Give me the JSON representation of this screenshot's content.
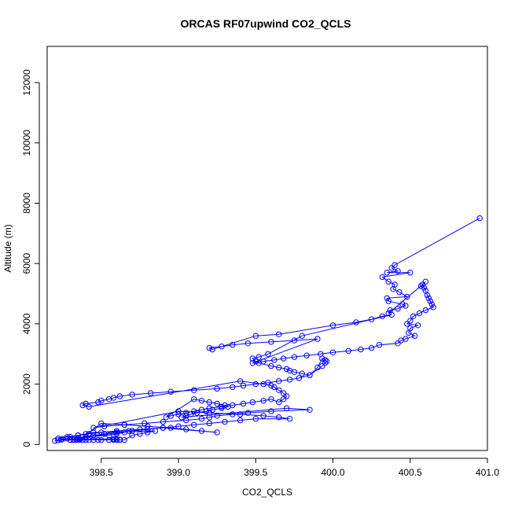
{
  "chart_data": {
    "type": "scatter",
    "title": "ORCAS RF07upwind CO2_QCLS",
    "xlabel": "CO2_QCLS",
    "ylabel": "Altitude (m)",
    "xlim": [
      398.15,
      401.0
    ],
    "ylim": [
      -200,
      13200
    ],
    "xticks": [
      398.5,
      399.0,
      399.5,
      400.0,
      400.5,
      401.0
    ],
    "xtick_labels": [
      "398.5",
      "399.0",
      "399.5",
      "400.0",
      "400.5",
      "401.0"
    ],
    "yticks": [
      0,
      2000,
      4000,
      6000,
      8000,
      10000,
      12000
    ],
    "ytick_labels": [
      "0",
      "2000",
      "4000",
      "6000",
      "8000",
      "10000",
      "12000"
    ],
    "grid": false,
    "legend": "none",
    "color": "#0000ff",
    "marker": "open-circle",
    "connected": true,
    "series": [
      {
        "x": [
          400.95,
          400.4,
          400.38,
          400.42,
          400.35,
          400.5,
          400.32,
          400.36,
          400.4,
          400.39,
          400.43,
          400.48,
          400.35,
          400.36,
          400.45,
          400.47,
          400.42,
          400.37,
          400.36,
          400.58,
          400.6,
          400.57,
          400.59,
          400.6,
          400.61,
          400.62,
          400.63,
          400.64,
          400.65,
          400.6,
          400.56,
          400.52,
          400.5,
          400.48,
          400.55,
          400.5,
          400.49,
          400.53,
          400.47,
          400.44,
          400.42,
          400.3,
          400.25,
          400.18,
          400.1,
          400.0,
          399.92,
          399.83,
          399.75,
          399.68,
          399.62,
          399.55,
          399.48,
          399.9,
          399.75,
          399.6,
          399.45,
          399.35,
          399.28,
          399.2,
          399.22,
          399.5,
          399.65,
          400.0,
          400.15,
          400.25,
          400.32,
          400.38,
          399.8,
          399.58,
          399.52,
          399.48,
          399.5,
          399.52,
          399.6,
          399.65,
          399.7,
          399.72,
          399.75,
          399.8,
          399.85,
          399.93,
          399.95,
          399.96,
          399.95,
          399.93,
          399.9,
          399.85,
          399.78,
          399.72,
          399.65,
          399.58,
          399.5,
          399.42,
          399.35,
          399.25,
          399.1,
          398.95,
          398.82,
          398.7,
          398.62,
          398.58,
          398.55,
          398.5,
          398.48,
          398.4,
          398.38,
          398.42,
          399.4,
          399.55,
          399.6,
          399.62,
          399.65,
          399.68,
          399.7,
          399.68,
          399.65,
          399.6,
          399.55,
          399.48,
          399.42,
          399.35,
          399.28,
          399.2,
          399.15,
          399.1,
          399.05,
          399.0,
          398.95,
          398.92,
          399.1,
          399.15,
          399.2,
          399.25,
          399.3,
          399.32,
          399.28,
          399.22,
          399.18,
          399.12,
          399.08,
          399.05,
          399.02,
          399.7,
          399.85,
          399.6,
          399.45,
          399.35,
          399.25,
          399.2,
          399.15,
          399.05,
          398.9,
          398.78,
          398.65,
          398.52,
          398.45,
          399.0,
          399.2,
          399.4,
          399.55,
          399.65,
          399.72,
          399.5,
          399.4,
          399.3,
          399.2,
          399.1,
          399.0,
          398.9,
          398.8,
          398.7,
          398.6,
          398.52,
          398.45,
          398.38,
          398.5,
          398.65,
          398.8,
          398.95,
          399.05,
          399.15,
          399.25,
          398.9,
          398.75,
          398.6,
          398.5,
          398.42,
          398.35,
          398.28,
          398.22,
          398.3,
          398.32,
          398.34,
          398.36,
          398.38,
          398.4,
          398.42,
          398.45,
          398.48,
          398.5,
          398.55,
          398.58,
          398.6,
          398.62,
          398.65,
          398.7,
          398.75,
          398.8,
          398.85,
          398.45,
          398.4,
          398.35,
          398.3,
          398.28,
          398.25,
          398.24,
          398.22,
          398.2,
          398.35,
          398.4,
          398.55,
          398.6,
          398.65,
          398.68,
          398.3,
          398.32,
          398.34,
          398.36,
          398.58,
          398.6,
          398.62
        ],
        "y": [
          7500,
          5950,
          5850,
          5750,
          5700,
          5700,
          5550,
          5400,
          5300,
          5150,
          5050,
          4900,
          4850,
          4750,
          4650,
          4600,
          4500,
          4450,
          4350,
          5300,
          5400,
          5250,
          5200,
          5100,
          4950,
          4850,
          4750,
          4650,
          4550,
          4450,
          4350,
          4250,
          4100,
          4000,
          3950,
          3850,
          3700,
          3600,
          3500,
          3450,
          3350,
          3300,
          3200,
          3150,
          3100,
          3050,
          3000,
          2950,
          2900,
          2850,
          2800,
          2750,
          2700,
          3500,
          3450,
          3400,
          3350,
          3300,
          3250,
          3200,
          3150,
          3600,
          3650,
          3950,
          4050,
          4150,
          4250,
          4300,
          3600,
          3000,
          2900,
          2850,
          2750,
          2700,
          2600,
          2550,
          2500,
          2450,
          2400,
          2350,
          2300,
          2600,
          2700,
          2750,
          2800,
          2850,
          2550,
          2300,
          2200,
          2150,
          2100,
          2050,
          2000,
          1950,
          1900,
          1850,
          1800,
          1750,
          1700,
          1650,
          1600,
          1550,
          1500,
          1450,
          1400,
          1350,
          1300,
          1250,
          2100,
          2000,
          1950,
          1900,
          1800,
          1700,
          1600,
          1500,
          1400,
          1500,
          1450,
          1400,
          1350,
          1300,
          1250,
          1200,
          1150,
          1100,
          1050,
          1000,
          950,
          900,
          1500,
          1450,
          1400,
          1350,
          1300,
          1250,
          1200,
          1150,
          1100,
          1050,
          1000,
          950,
          900,
          1200,
          1150,
          1100,
          1050,
          1000,
          950,
          900,
          850,
          800,
          750,
          700,
          650,
          600,
          550,
          1100,
          1050,
          1000,
          950,
          900,
          850,
          850,
          800,
          750,
          700,
          650,
          600,
          550,
          500,
          450,
          400,
          350,
          300,
          250,
          700,
          650,
          600,
          550,
          500,
          450,
          400,
          550,
          500,
          450,
          400,
          350,
          300,
          250,
          200,
          150,
          150,
          150,
          150,
          150,
          150,
          150,
          150,
          150,
          150,
          150,
          150,
          150,
          150,
          150,
          300,
          350,
          400,
          450,
          400,
          350,
          300,
          250,
          200,
          180,
          160,
          140,
          120,
          200,
          250,
          300,
          350,
          400,
          450,
          150,
          160,
          170,
          180,
          180,
          170,
          160
        ]
      }
    ]
  }
}
